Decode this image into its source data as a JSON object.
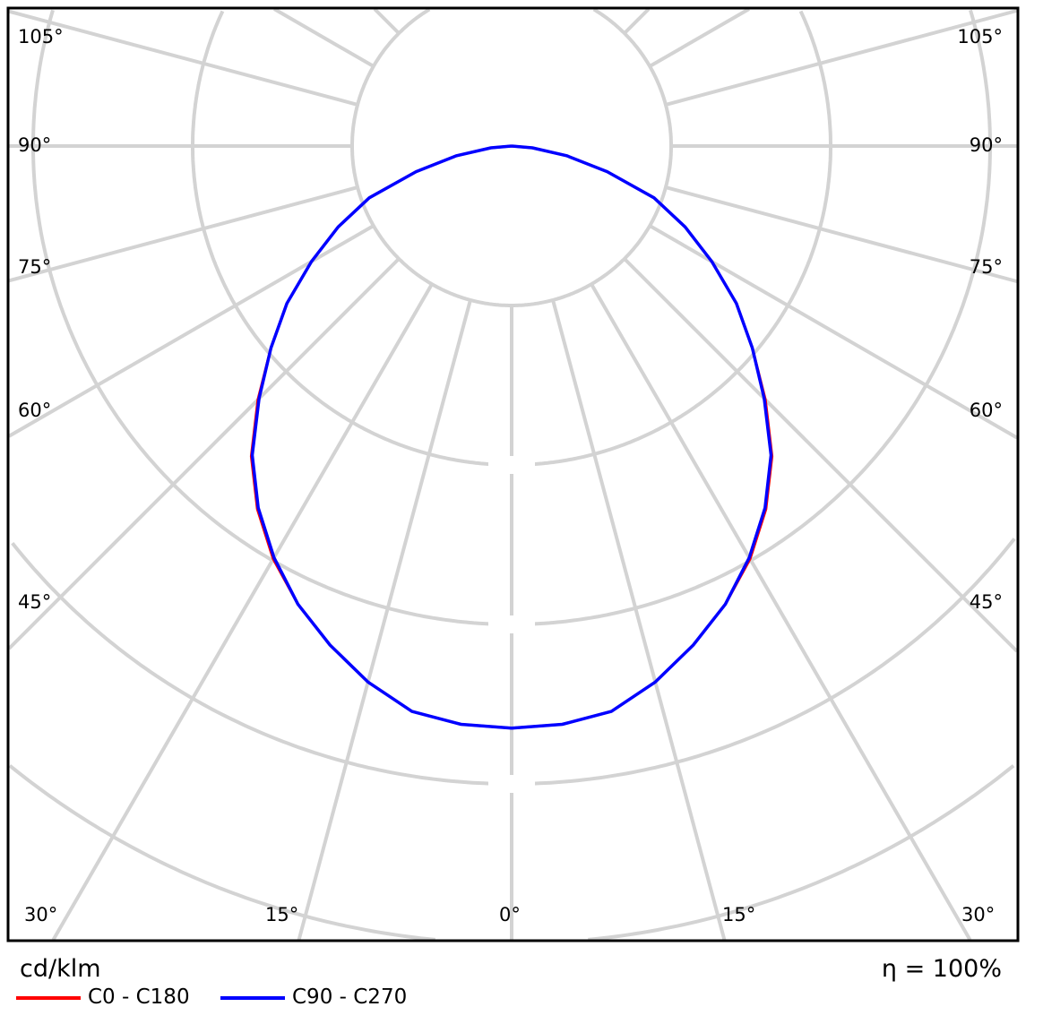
{
  "chart_data": {
    "type": "polar",
    "unit_label": "cd/klm",
    "efficiency_label": "η = 100%",
    "angle_labels": {
      "left": [
        "105°",
        "90°",
        "75°",
        "60°",
        "45°"
      ],
      "right": [
        "105°",
        "90°",
        "75°",
        "60°",
        "45°"
      ],
      "bottom": [
        "30°",
        "15°",
        "0°",
        "15°",
        "30°"
      ]
    },
    "grid": true,
    "angle_step_deg": 15,
    "angles_deg": [
      0,
      5,
      10,
      15,
      20,
      25,
      30,
      35,
      40,
      45,
      50,
      55,
      60,
      65,
      70,
      75,
      80,
      85,
      90
    ],
    "series": [
      {
        "name": "C0 - C180",
        "color": "#ff0000",
        "values": [
          3.65,
          3.64,
          3.6,
          3.48,
          3.33,
          3.17,
          2.99,
          2.78,
          2.54,
          2.25,
          1.97,
          1.72,
          1.45,
          1.2,
          0.95,
          0.62,
          0.35,
          0.13,
          0
        ]
      },
      {
        "name": "C90 - C270",
        "color": "#0000ff",
        "values": [
          3.65,
          3.64,
          3.6,
          3.48,
          3.33,
          3.17,
          2.98,
          2.77,
          2.53,
          2.24,
          1.97,
          1.72,
          1.45,
          1.2,
          0.95,
          0.62,
          0.35,
          0.13,
          0
        ]
      }
    ],
    "legend_position": "bottom-left"
  }
}
